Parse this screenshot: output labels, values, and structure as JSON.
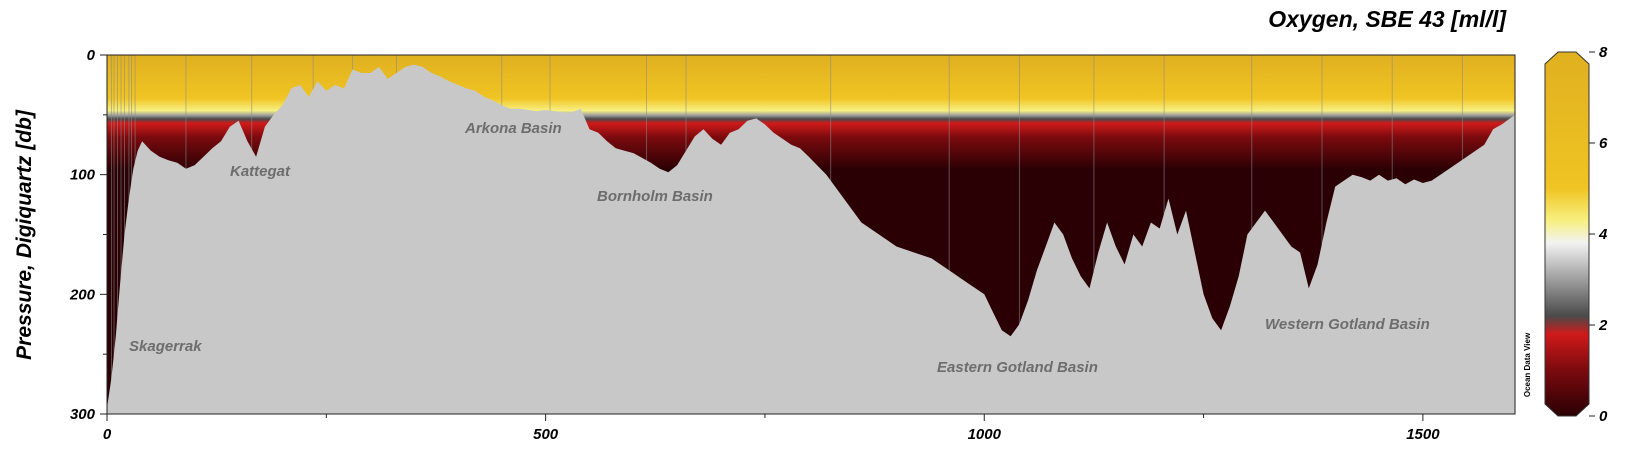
{
  "chart_data": {
    "type": "heatmap",
    "title": "Oxygen, SBE 43 [ml/l]",
    "xlabel": "",
    "ylabel": "Pressure, Digiquartz [db]",
    "xlim": [
      0,
      1605
    ],
    "ylim": [
      300,
      0
    ],
    "x_ticks": [
      "0",
      "500",
      "1000",
      "1500"
    ],
    "x_tick_values": [
      0,
      500,
      1000,
      1500
    ],
    "y_ticks": [
      "0",
      "100",
      "200",
      "300"
    ],
    "y_tick_values": [
      0,
      100,
      200,
      300
    ],
    "colorbar": {
      "range": [
        0,
        8
      ],
      "ticks": [
        "0",
        "2",
        "4",
        "6",
        "8"
      ],
      "tick_values": [
        0,
        2,
        4,
        6,
        8
      ],
      "colors": [
        {
          "value": 0,
          "color": "#2a0004"
        },
        {
          "value": 1,
          "color": "#7a0a0e"
        },
        {
          "value": 1.8,
          "color": "#d01a1a"
        },
        {
          "value": 2.2,
          "color": "#4a4a4a"
        },
        {
          "value": 3,
          "color": "#9e9e9e"
        },
        {
          "value": 3.8,
          "color": "#f2f2f2"
        },
        {
          "value": 4.3,
          "color": "#f7f080"
        },
        {
          "value": 5,
          "color": "#f0c423"
        },
        {
          "value": 8,
          "color": "#e0b020"
        }
      ]
    },
    "bathymetry": {
      "x": [
        0,
        5,
        10,
        15,
        20,
        25,
        30,
        35,
        40,
        50,
        60,
        70,
        80,
        90,
        100,
        110,
        120,
        130,
        140,
        150,
        160,
        170,
        180,
        190,
        200,
        210,
        220,
        230,
        240,
        250,
        260,
        270,
        280,
        290,
        300,
        310,
        320,
        330,
        340,
        350,
        360,
        370,
        380,
        390,
        400,
        410,
        420,
        430,
        440,
        450,
        460,
        470,
        480,
        490,
        500,
        510,
        520,
        530,
        540,
        550,
        560,
        570,
        580,
        590,
        600,
        610,
        620,
        630,
        640,
        650,
        660,
        670,
        680,
        690,
        700,
        710,
        720,
        730,
        740,
        750,
        760,
        770,
        780,
        790,
        800,
        820,
        840,
        860,
        880,
        900,
        920,
        940,
        960,
        980,
        1000,
        1010,
        1020,
        1030,
        1040,
        1050,
        1060,
        1070,
        1080,
        1090,
        1100,
        1110,
        1120,
        1130,
        1140,
        1150,
        1160,
        1170,
        1180,
        1190,
        1200,
        1210,
        1220,
        1230,
        1240,
        1250,
        1260,
        1270,
        1280,
        1290,
        1300,
        1310,
        1320,
        1330,
        1340,
        1350,
        1360,
        1370,
        1380,
        1390,
        1400,
        1410,
        1420,
        1430,
        1440,
        1450,
        1460,
        1470,
        1480,
        1490,
        1500,
        1510,
        1520,
        1530,
        1540,
        1550,
        1560,
        1570,
        1580,
        1590,
        1605
      ],
      "depth": [
        295,
        270,
        235,
        190,
        150,
        120,
        95,
        80,
        72,
        80,
        85,
        88,
        90,
        95,
        92,
        85,
        78,
        72,
        60,
        55,
        72,
        85,
        60,
        50,
        42,
        28,
        25,
        35,
        22,
        30,
        25,
        28,
        12,
        15,
        15,
        10,
        20,
        15,
        10,
        8,
        10,
        15,
        18,
        22,
        25,
        28,
        30,
        35,
        38,
        42,
        45,
        45,
        46,
        47,
        46,
        47,
        48,
        48,
        45,
        62,
        65,
        72,
        78,
        80,
        82,
        86,
        90,
        95,
        98,
        92,
        80,
        68,
        62,
        70,
        75,
        65,
        62,
        55,
        53,
        58,
        65,
        70,
        75,
        78,
        85,
        100,
        120,
        140,
        150,
        160,
        165,
        170,
        180,
        190,
        200,
        215,
        230,
        235,
        225,
        205,
        180,
        160,
        140,
        150,
        170,
        185,
        195,
        165,
        140,
        160,
        175,
        150,
        160,
        140,
        145,
        120,
        150,
        130,
        165,
        200,
        220,
        230,
        210,
        185,
        150,
        140,
        130,
        140,
        150,
        160,
        165,
        195,
        175,
        140,
        110,
        105,
        100,
        102,
        105,
        100,
        105,
        103,
        108,
        104,
        107,
        105,
        100,
        95,
        90,
        85,
        80,
        75,
        62,
        58,
        50
      ]
    },
    "oxycline_depth": {
      "x": [
        0,
        100,
        200,
        300,
        400,
        450,
        500,
        550,
        600,
        650,
        700,
        750,
        800,
        900,
        1000,
        1100,
        1200,
        1300,
        1400,
        1500,
        1605
      ],
      "depth": [
        30,
        28,
        22,
        18,
        22,
        40,
        48,
        55,
        60,
        65,
        66,
        66,
        66,
        66,
        65,
        65,
        67,
        68,
        70,
        68,
        65
      ]
    },
    "station_lines_x": [
      5,
      8,
      12,
      16,
      20,
      25,
      28,
      32,
      90,
      165,
      235,
      280,
      330,
      450,
      505,
      615,
      660,
      825,
      960,
      1040,
      1125,
      1205,
      1305,
      1385,
      1465,
      1545
    ]
  },
  "annotations": [
    {
      "id": "skagerrak",
      "text": "Skagerrak"
    },
    {
      "id": "kattegat",
      "text": "Kattegat"
    },
    {
      "id": "arkona",
      "text": "Arkona Basin"
    },
    {
      "id": "bornholm",
      "text": "Bornholm Basin"
    },
    {
      "id": "eastern-gotland",
      "text": "Eastern Gotland Basin"
    },
    {
      "id": "western-gotland",
      "text": "Western Gotland Basin"
    }
  ],
  "watermark": "Ocean Data View"
}
